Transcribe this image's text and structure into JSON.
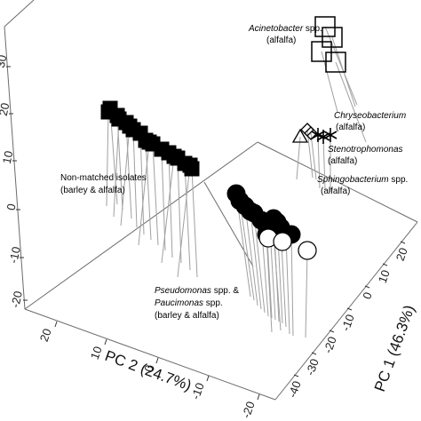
{
  "chart_data": {
    "type": "scatter",
    "projection": "3d",
    "axes": {
      "pc1": {
        "label": "PC 1 (46.3%)",
        "ticks": [
          "20",
          "10",
          "0",
          "-10",
          "-20",
          "-30",
          "-40"
        ]
      },
      "pc2": {
        "label": "PC 2 (24.7%)",
        "ticks": [
          "-20",
          "-10",
          "0",
          "10",
          "20"
        ]
      },
      "pc3": {
        "label": "",
        "ticks": [
          "-20",
          "-10",
          "0",
          "10",
          "20",
          "30"
        ]
      }
    },
    "annotations": [
      {
        "id": "acinetobacter",
        "lines": [
          {
            "text": "Acinetobacter",
            "italic": true
          },
          {
            "text": " spp.",
            "italic": false
          }
        ],
        "line2": "(alfalfa)"
      },
      {
        "id": "chryseobacterium",
        "lines": [
          {
            "text": "Chryseobacterium",
            "italic": true
          }
        ],
        "line2": "(alfalfa)"
      },
      {
        "id": "stenotrophomonas",
        "lines": [
          {
            "text": "Stenotrophomonas",
            "italic": true
          }
        ],
        "line2": "(alfalfa)"
      },
      {
        "id": "sphingobacterium",
        "lines": [
          {
            "text": "Sphingobacterium",
            "italic": true
          },
          {
            "text": " spp.",
            "italic": false
          }
        ],
        "line2": "(alfalfa)"
      },
      {
        "id": "nonmatched",
        "lines": [
          {
            "text": "Non-matched isolates",
            "italic": false
          }
        ],
        "line2": "(barley & alfalfa)"
      },
      {
        "id": "pseudomonas",
        "lines": [
          {
            "text": "Pseudomonas",
            "italic": true
          },
          {
            "text": " spp. &",
            "italic": false
          }
        ],
        "line2_parts": [
          {
            "text": "Paucimonas",
            "italic": true
          },
          {
            "text": " spp.",
            "italic": false
          }
        ],
        "line3": "(barley & alfalfa)"
      }
    ],
    "groups": [
      {
        "name": "Acinetobacter spp. (alfalfa)",
        "marker": "open-square",
        "count": 4
      },
      {
        "name": "Chryseobacterium (alfalfa)",
        "marker": "open-diamond",
        "count": 2
      },
      {
        "name": "Stenotrophomonas (alfalfa)",
        "marker": "open-triangle",
        "count": 1
      },
      {
        "name": "Sphingobacterium spp. (alfalfa)",
        "marker": "asterisk",
        "count": 3
      },
      {
        "name": "Non-matched isolates (barley & alfalfa)",
        "marker": "filled-square",
        "count": 18
      },
      {
        "name": "Pseudomonas spp. & Paucimonas spp. (barley & alfalfa)",
        "marker": "filled-circle",
        "count": 16
      }
    ],
    "grid": false,
    "legend": "none"
  }
}
